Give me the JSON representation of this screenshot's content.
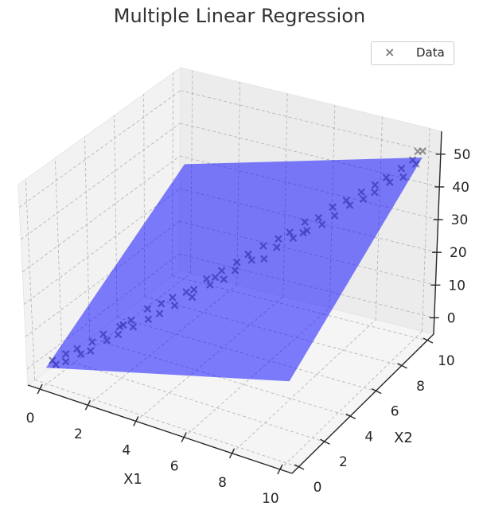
{
  "chart_data": {
    "type": "scatter3d+surface",
    "title": "Multiple Linear Regression",
    "xlabel": "X1",
    "ylabel": "X2",
    "zlabel": "",
    "xlim": [
      -0.5,
      10.5
    ],
    "ylim": [
      -0.5,
      10.5
    ],
    "zlim": [
      -5,
      57
    ],
    "xticks": [
      "0",
      "2",
      "4",
      "6",
      "8",
      "10"
    ],
    "yticks": [
      "0",
      "2",
      "4",
      "6",
      "8",
      "10"
    ],
    "zticks": [
      "0",
      "10",
      "20",
      "30",
      "40",
      "50"
    ],
    "grid": true,
    "legend": {
      "position": "top-right",
      "entries": [
        "Data"
      ]
    },
    "surface": {
      "name": "Regression plane",
      "coef_x1": 2,
      "coef_x2": 3,
      "intercept": 0,
      "x1_range": [
        0,
        10
      ],
      "x2_range": [
        0,
        10
      ],
      "color": "#0000ff",
      "alpha": 0.5
    },
    "scatter": {
      "name": "Data",
      "marker": "x",
      "color": "#808080",
      "points": [
        [
          0.1,
          0.3,
          1.5
        ],
        [
          0.3,
          0.2,
          1.0
        ],
        [
          0.5,
          0.6,
          3.5
        ],
        [
          0.6,
          0.4,
          2.0
        ],
        [
          0.8,
          0.9,
          4.8
        ],
        [
          1.0,
          0.8,
          4.0
        ],
        [
          1.2,
          1.3,
          6.5
        ],
        [
          1.3,
          1.0,
          5.0
        ],
        [
          1.5,
          1.6,
          8.6
        ],
        [
          1.7,
          1.5,
          7.5
        ],
        [
          1.9,
          2.1,
          10.2
        ],
        [
          2.0,
          1.8,
          9.0
        ],
        [
          2.2,
          2.4,
          11.8
        ],
        [
          2.4,
          2.2,
          10.9
        ],
        [
          2.6,
          2.9,
          14.5
        ],
        [
          2.8,
          2.6,
          12.8
        ],
        [
          3.0,
          3.2,
          16.0
        ],
        [
          3.1,
          2.9,
          14.2
        ],
        [
          3.3,
          3.5,
          17.5
        ],
        [
          3.5,
          3.3,
          16.2
        ],
        [
          3.7,
          3.8,
          19.0
        ],
        [
          3.9,
          4.0,
          19.5
        ],
        [
          4.0,
          3.7,
          18.5
        ],
        [
          4.2,
          4.4,
          22.0
        ],
        [
          4.4,
          4.3,
          21.0
        ],
        [
          4.6,
          4.8,
          24.0
        ],
        [
          4.8,
          4.6,
          22.5
        ],
        [
          5.0,
          5.2,
          26.0
        ],
        [
          5.1,
          4.9,
          24.8
        ],
        [
          5.3,
          5.5,
          28.0
        ],
        [
          5.5,
          5.4,
          27.0
        ],
        [
          5.7,
          5.9,
          30.0
        ],
        [
          5.9,
          5.6,
          27.5
        ],
        [
          6.1,
          6.3,
          31.5
        ],
        [
          6.2,
          6.0,
          30.2
        ],
        [
          6.4,
          6.6,
          33.0
        ],
        [
          6.6,
          6.5,
          32.0
        ],
        [
          6.8,
          7.0,
          35.5
        ],
        [
          7.0,
          6.8,
          34.0
        ],
        [
          7.2,
          7.3,
          36.5
        ],
        [
          7.4,
          7.2,
          35.2
        ],
        [
          7.5,
          7.8,
          38.5
        ],
        [
          7.7,
          7.6,
          37.0
        ],
        [
          7.9,
          8.1,
          40.2
        ],
        [
          8.1,
          8.0,
          39.5
        ],
        [
          8.3,
          8.5,
          42.0
        ],
        [
          8.5,
          8.3,
          41.0
        ],
        [
          8.7,
          8.8,
          43.8
        ],
        [
          8.8,
          8.6,
          42.5
        ],
        [
          9.0,
          9.1,
          45.5
        ],
        [
          9.2,
          9.0,
          44.8
        ],
        [
          9.4,
          9.5,
          47.5
        ],
        [
          9.6,
          9.3,
          46.0
        ],
        [
          9.7,
          9.8,
          49.5
        ],
        [
          9.9,
          9.7,
          49.0
        ],
        [
          10.0,
          10.0,
          52.0
        ],
        [
          9.8,
          10.0,
          51.5
        ],
        [
          2.1,
          2.0,
          11.5
        ],
        [
          4.5,
          4.5,
          22.8
        ],
        [
          6.9,
          6.7,
          33.5
        ]
      ]
    }
  }
}
